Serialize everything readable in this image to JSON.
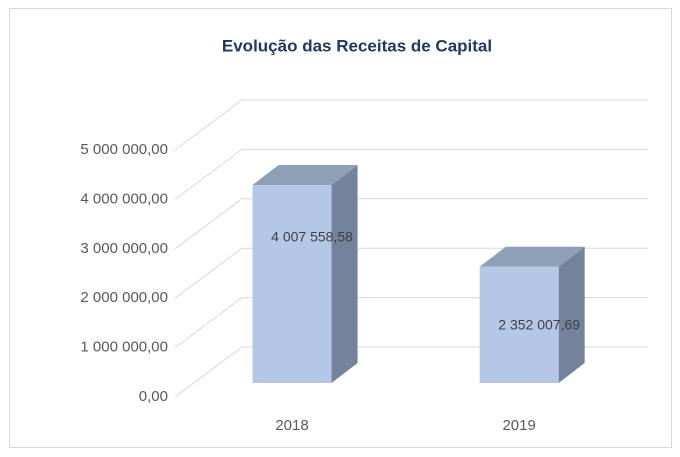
{
  "chart_data": {
    "type": "bar3d",
    "title": "Evolução das Receitas de Capital",
    "categories": [
      "2018",
      "2019"
    ],
    "values": [
      4007558.58,
      2352007.69
    ],
    "value_labels": [
      "4 007 558,58",
      "2 352 007,69"
    ],
    "color": "#b4c7e7",
    "ylim": [
      0,
      5000000
    ],
    "yticks": [
      {
        "value": 0,
        "label": "0,00"
      },
      {
        "value": 1000000,
        "label": "1 000 000,00"
      },
      {
        "value": 2000000,
        "label": "2 000 000,00"
      },
      {
        "value": 3000000,
        "label": "3 000 000,00"
      },
      {
        "value": 4000000,
        "label": "4 000 000,00"
      },
      {
        "value": 5000000,
        "label": "5 000 000,00"
      }
    ],
    "grid": true
  }
}
